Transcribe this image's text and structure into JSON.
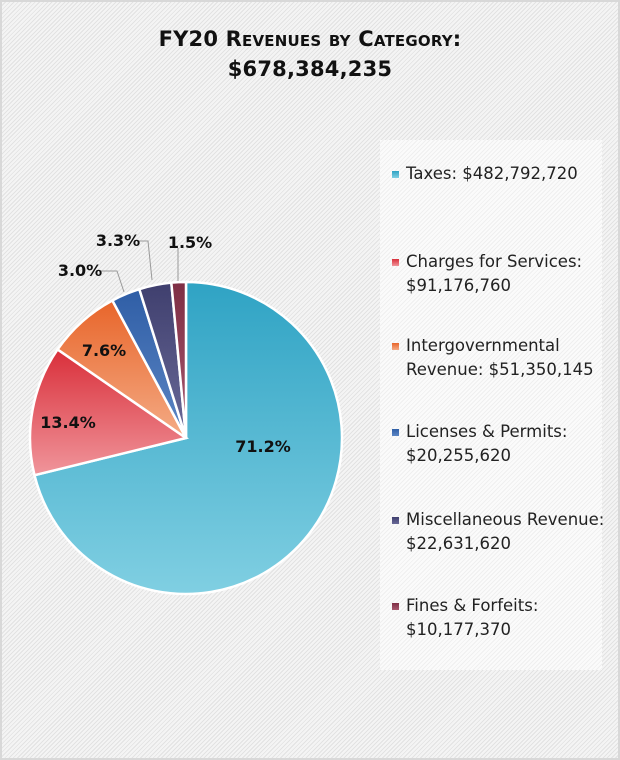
{
  "chart_data": {
    "type": "pie",
    "title": "FY20 Revenues by Category:",
    "subtitle": "$678,384,235",
    "legend_position": "right",
    "slices": [
      {
        "name": "Taxes",
        "legend": "Taxes: $482,792,720",
        "value": 482792720,
        "percent_label": "71.2%",
        "color": "#2fa3c4",
        "color2": "#80cfe2"
      },
      {
        "name": "Charges for Services",
        "legend": "Charges for Services: $91,176,760",
        "value": 91176760,
        "percent_label": "13.4%",
        "color": "#d92f3a",
        "color2": "#f0959b"
      },
      {
        "name": "Intergovernmental Revenue",
        "legend": "Intergovernmental Revenue: $51,350,145",
        "value": 51350145,
        "percent_label": "7.6%",
        "color": "#e8652a",
        "color2": "#f4ab85"
      },
      {
        "name": "Licenses & Permits",
        "legend": "Licenses & Permits: $20,255,620",
        "value": 20255620,
        "percent_label": "3.0%",
        "color": "#2f5ea6",
        "color2": "#5c86c4"
      },
      {
        "name": "Miscellaneous Revenue",
        "legend": "Miscellaneous Revenue: $22,631,620",
        "value": 22631620,
        "percent_label": "3.3%",
        "color": "#3f3f6e",
        "color2": "#6a6a98"
      },
      {
        "name": "Fines & Forfeits",
        "legend": "Fines & Forfeits: $10,177,370",
        "value": 10177370,
        "percent_label": "1.5%",
        "color": "#7e2e44",
        "color2": "#a85a70"
      }
    ]
  }
}
